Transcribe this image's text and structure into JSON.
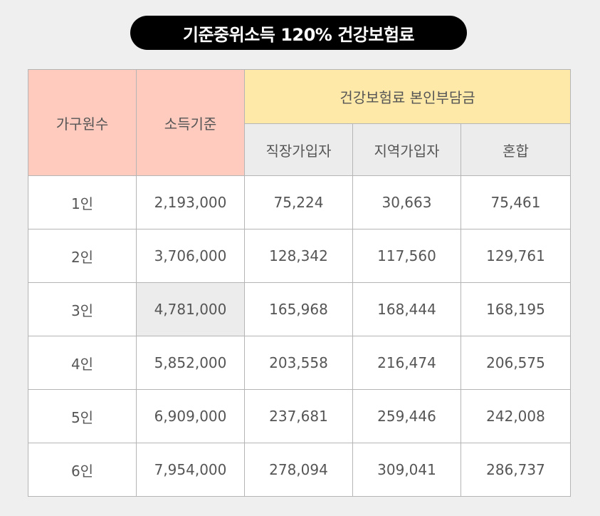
{
  "title": "기준중위소득 120% 건강보험료",
  "header": {
    "household": "가구원수",
    "income": "소득기준",
    "premium_group": "건강보험료 본인부담금",
    "employee": "직장가입자",
    "regional": "지역가입자",
    "mixed": "혼합"
  },
  "rows": [
    {
      "household": "1인",
      "income": "2,193,000",
      "employee": "75,224",
      "regional": "30,663",
      "mixed": "75,461"
    },
    {
      "household": "2인",
      "income": "3,706,000",
      "employee": "128,342",
      "regional": "117,560",
      "mixed": "129,761"
    },
    {
      "household": "3인",
      "income": "4,781,000",
      "employee": "165,968",
      "regional": "168,444",
      "mixed": "168,195"
    },
    {
      "household": "4인",
      "income": "5,852,000",
      "employee": "203,558",
      "regional": "216,474",
      "mixed": "206,575"
    },
    {
      "household": "5인",
      "income": "6,909,000",
      "employee": "237,681",
      "regional": "259,446",
      "mixed": "242,008"
    },
    {
      "household": "6인",
      "income": "7,954,000",
      "employee": "278,094",
      "regional": "309,041",
      "mixed": "286,737"
    }
  ],
  "colors": {
    "salmon_header": "#ffcbbe",
    "yellow_header": "#ffe9a9",
    "grey_header": "#ececec",
    "title_background": "#000000"
  }
}
